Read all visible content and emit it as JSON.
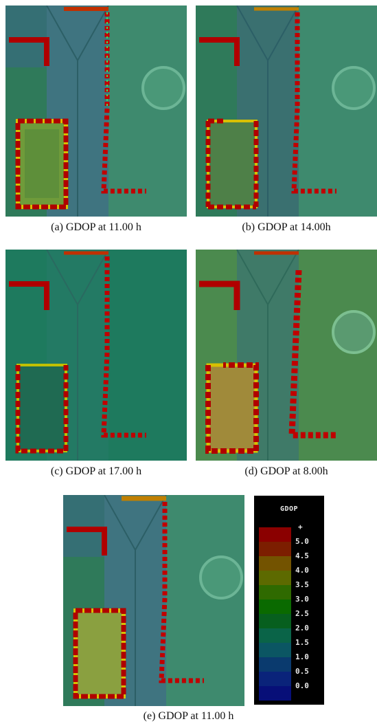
{
  "panels": [
    {
      "id": "a",
      "caption": "(a) GDOP at 11.00 h"
    },
    {
      "id": "b",
      "caption": "(b) GDOP at 14.00h"
    },
    {
      "id": "c",
      "caption": "(c) GDOP at 17.00 h"
    },
    {
      "id": "d",
      "caption": "(d) GDOP at 8.00h"
    },
    {
      "id": "e",
      "caption": "(e) GDOP at 11.00 h"
    }
  ],
  "legend": {
    "title": "GDOP",
    "labels": [
      "+",
      "5.0",
      "4.5",
      "4.0",
      "3.5",
      "3.0",
      "2.5",
      "2.0",
      "1.5",
      "1.0",
      "0.5",
      "0.0"
    ],
    "colors": [
      "#8b0000",
      "#7c1e00",
      "#735300",
      "#5d6a00",
      "#2f6a00",
      "#0a6a00",
      "#075f1e",
      "#0a6448",
      "#0b5663",
      "#0a3a6e",
      "#0a237a",
      "#070f78"
    ]
  }
}
